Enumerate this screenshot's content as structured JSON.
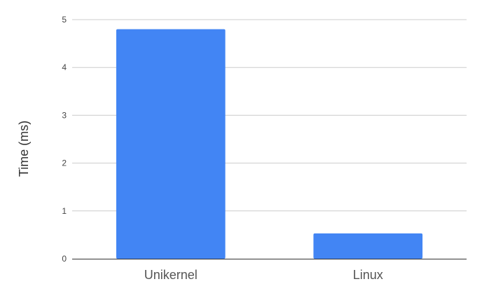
{
  "chart_data": {
    "type": "bar",
    "categories": [
      "Unikernel",
      "Linux"
    ],
    "values": [
      4.8,
      0.53
    ],
    "title": "",
    "xlabel": "",
    "ylabel": "Time (ms)",
    "ylim": [
      0,
      5
    ],
    "yticks": [
      "0",
      "1",
      "2",
      "3",
      "4",
      "5"
    ],
    "grid": true,
    "legend": "none",
    "colors": {
      "bar": "#4285f4",
      "grid": "#cccccc",
      "baseline": "#333333"
    }
  }
}
